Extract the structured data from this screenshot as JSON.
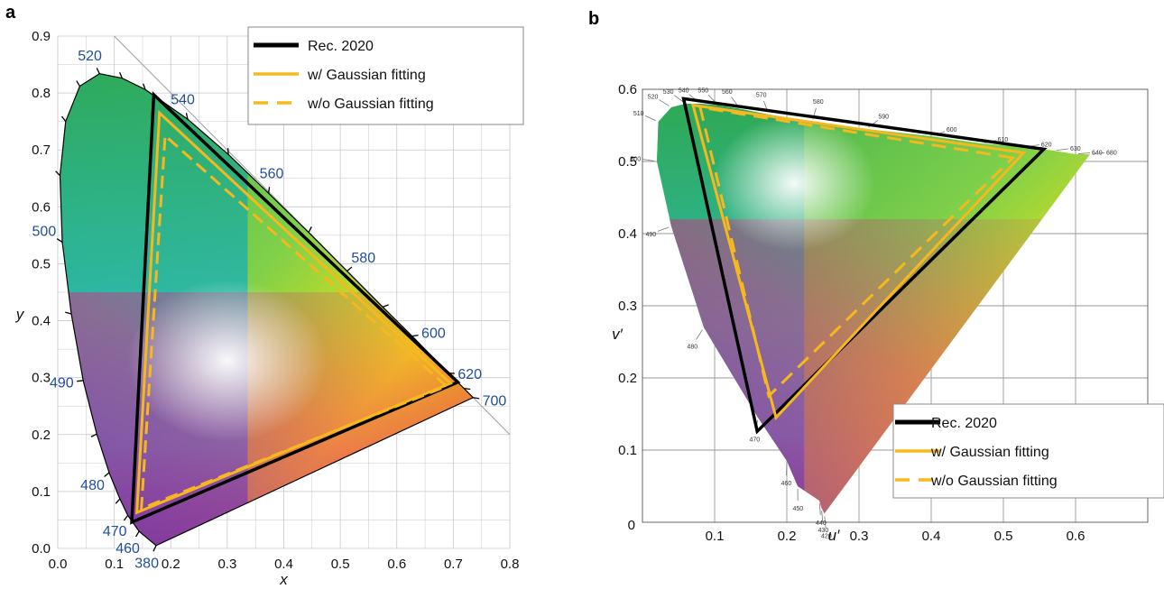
{
  "panel_labels": [
    "a",
    "b"
  ],
  "colors": {
    "rec2020": "#000000",
    "gaussian": "#F6B81E",
    "wavelength_label": "#1F4E9A"
  },
  "chart_data": [
    {
      "type": "scatter",
      "panel": "a",
      "title": "",
      "xlabel": "x",
      "ylabel": "y",
      "xlim": [
        0.0,
        0.8
      ],
      "ylim": [
        0.0,
        0.9
      ],
      "xticks": [
        "0.0",
        "0.1",
        "0.2",
        "0.3",
        "0.4",
        "0.5",
        "0.6",
        "0.7",
        "0.8"
      ],
      "yticks": [
        "0.0",
        "0.1",
        "0.2",
        "0.3",
        "0.4",
        "0.5",
        "0.6",
        "0.7",
        "0.8",
        "0.9"
      ],
      "grid": true,
      "legend": "top-right",
      "spectral_locus": [
        {
          "nm": 380,
          "x": 0.174,
          "y": 0.005
        },
        {
          "nm": 460,
          "x": 0.144,
          "y": 0.03
        },
        {
          "nm": 470,
          "x": 0.124,
          "y": 0.058
        },
        {
          "nm": 475,
          "x": 0.11,
          "y": 0.087
        },
        {
          "nm": 480,
          "x": 0.091,
          "y": 0.133
        },
        {
          "nm": 485,
          "x": 0.069,
          "y": 0.201
        },
        {
          "nm": 490,
          "x": 0.045,
          "y": 0.295
        },
        {
          "nm": 495,
          "x": 0.024,
          "y": 0.412
        },
        {
          "nm": 500,
          "x": 0.008,
          "y": 0.538
        },
        {
          "nm": 505,
          "x": 0.004,
          "y": 0.655
        },
        {
          "nm": 510,
          "x": 0.014,
          "y": 0.75
        },
        {
          "nm": 515,
          "x": 0.039,
          "y": 0.812
        },
        {
          "nm": 520,
          "x": 0.074,
          "y": 0.834
        },
        {
          "nm": 525,
          "x": 0.114,
          "y": 0.826
        },
        {
          "nm": 530,
          "x": 0.155,
          "y": 0.806
        },
        {
          "nm": 540,
          "x": 0.23,
          "y": 0.754
        },
        {
          "nm": 550,
          "x": 0.302,
          "y": 0.692
        },
        {
          "nm": 560,
          "x": 0.373,
          "y": 0.624
        },
        {
          "nm": 570,
          "x": 0.444,
          "y": 0.555
        },
        {
          "nm": 580,
          "x": 0.512,
          "y": 0.487
        },
        {
          "nm": 590,
          "x": 0.575,
          "y": 0.424
        },
        {
          "nm": 600,
          "x": 0.627,
          "y": 0.373
        },
        {
          "nm": 620,
          "x": 0.691,
          "y": 0.308
        },
        {
          "nm": 640,
          "x": 0.719,
          "y": 0.281
        },
        {
          "nm": 700,
          "x": 0.735,
          "y": 0.265
        }
      ],
      "wavelength_labels": [
        {
          "text": "380",
          "x": 0.174,
          "y": 0.005
        },
        {
          "text": "460",
          "x": 0.144,
          "y": 0.03
        },
        {
          "text": "470",
          "x": 0.124,
          "y": 0.058
        },
        {
          "text": "480",
          "x": 0.091,
          "y": 0.133
        },
        {
          "text": "490",
          "x": 0.045,
          "y": 0.295
        },
        {
          "text": "500",
          "x": 0.008,
          "y": 0.538
        },
        {
          "text": "520",
          "x": 0.074,
          "y": 0.834
        },
        {
          "text": "540",
          "x": 0.23,
          "y": 0.754
        },
        {
          "text": "560",
          "x": 0.373,
          "y": 0.624
        },
        {
          "text": "580",
          "x": 0.512,
          "y": 0.487
        },
        {
          "text": "600",
          "x": 0.627,
          "y": 0.373
        },
        {
          "text": "620",
          "x": 0.691,
          "y": 0.308
        },
        {
          "text": "700",
          "x": 0.735,
          "y": 0.265
        }
      ],
      "series": [
        {
          "name": "Rec. 2020",
          "style": "solid",
          "color": "#000000",
          "points": [
            [
              0.708,
              0.292
            ],
            [
              0.17,
              0.797
            ],
            [
              0.131,
              0.046
            ]
          ]
        },
        {
          "name": "w/ Gaussian fitting",
          "style": "solid",
          "color": "#F6B81E",
          "points": [
            [
              0.695,
              0.29
            ],
            [
              0.18,
              0.765
            ],
            [
              0.14,
              0.063
            ]
          ]
        },
        {
          "name": "w/o Gaussian fitting",
          "style": "dashed",
          "color": "#F6B81E",
          "points": [
            [
              0.688,
              0.285
            ],
            [
              0.19,
              0.725
            ],
            [
              0.148,
              0.07
            ]
          ]
        }
      ]
    },
    {
      "type": "scatter",
      "panel": "b",
      "title": "",
      "xlabel": "u′",
      "ylabel": "v′",
      "xlim": [
        0.0,
        0.7
      ],
      "ylim": [
        0.0,
        0.6
      ],
      "xticks": [
        "0",
        "0.1",
        "0.2",
        "0.3",
        "0.4",
        "0.5",
        "0.6"
      ],
      "yticks": [
        "0",
        "0.1",
        "0.2",
        "0.3",
        "0.4",
        "0.5",
        "0.6"
      ],
      "grid": true,
      "legend": "bottom-right",
      "spectral_locus": [
        {
          "nm": 420,
          "u": 0.252,
          "v": 0.012
        },
        {
          "nm": 430,
          "u": 0.248,
          "v": 0.02
        },
        {
          "nm": 440,
          "u": 0.245,
          "v": 0.03
        },
        {
          "nm": 450,
          "u": 0.215,
          "v": 0.05
        },
        {
          "nm": 460,
          "u": 0.2,
          "v": 0.085
        },
        {
          "nm": 470,
          "u": 0.16,
          "v": 0.145
        },
        {
          "nm": 480,
          "u": 0.085,
          "v": 0.27
        },
        {
          "nm": 490,
          "u": 0.04,
          "v": 0.41
        },
        {
          "nm": 500,
          "u": 0.02,
          "v": 0.5
        },
        {
          "nm": 510,
          "u": 0.022,
          "v": 0.555
        },
        {
          "nm": 520,
          "u": 0.04,
          "v": 0.575
        },
        {
          "nm": 530,
          "u": 0.06,
          "v": 0.58
        },
        {
          "nm": 540,
          "u": 0.08,
          "v": 0.58
        },
        {
          "nm": 550,
          "u": 0.105,
          "v": 0.578
        },
        {
          "nm": 560,
          "u": 0.135,
          "v": 0.573
        },
        {
          "nm": 570,
          "u": 0.175,
          "v": 0.565
        },
        {
          "nm": 580,
          "u": 0.235,
          "v": 0.555
        },
        {
          "nm": 590,
          "u": 0.31,
          "v": 0.545
        },
        {
          "nm": 600,
          "u": 0.4,
          "v": 0.535
        },
        {
          "nm": 610,
          "u": 0.47,
          "v": 0.525
        },
        {
          "nm": 620,
          "u": 0.53,
          "v": 0.52
        },
        {
          "nm": 630,
          "u": 0.57,
          "v": 0.515
        },
        {
          "nm": 640,
          "u": 0.6,
          "v": 0.51
        },
        {
          "nm": 680,
          "u": 0.62,
          "v": 0.51
        }
      ],
      "wavelength_labels": [
        {
          "text": "420",
          "u": 0.252,
          "v": 0.012
        },
        {
          "text": "430",
          "u": 0.248,
          "v": 0.02
        },
        {
          "text": "440",
          "u": 0.245,
          "v": 0.03
        },
        {
          "text": "450",
          "u": 0.215,
          "v": 0.05
        },
        {
          "text": "460",
          "u": 0.2,
          "v": 0.085
        },
        {
          "text": "470",
          "u": 0.16,
          "v": 0.145
        },
        {
          "text": "480",
          "u": 0.085,
          "v": 0.27
        },
        {
          "text": "490",
          "u": 0.04,
          "v": 0.41
        },
        {
          "text": "500",
          "u": 0.02,
          "v": 0.5
        },
        {
          "text": "510",
          "u": 0.022,
          "v": 0.555
        },
        {
          "text": "520",
          "u": 0.04,
          "v": 0.575
        },
        {
          "text": "530",
          "u": 0.06,
          "v": 0.58
        },
        {
          "text": "540",
          "u": 0.08,
          "v": 0.58
        },
        {
          "text": "550",
          "u": 0.105,
          "v": 0.578
        },
        {
          "text": "560",
          "u": 0.135,
          "v": 0.573
        },
        {
          "text": "570",
          "u": 0.175,
          "v": 0.565
        },
        {
          "text": "580",
          "u": 0.235,
          "v": 0.555
        },
        {
          "text": "590",
          "u": 0.31,
          "v": 0.545
        },
        {
          "text": "600",
          "u": 0.4,
          "v": 0.535
        },
        {
          "text": "610",
          "u": 0.47,
          "v": 0.525
        },
        {
          "text": "620",
          "u": 0.53,
          "v": 0.52
        },
        {
          "text": "630",
          "u": 0.57,
          "v": 0.515
        },
        {
          "text": "640",
          "u": 0.6,
          "v": 0.51
        },
        {
          "text": "680",
          "u": 0.62,
          "v": 0.51
        }
      ],
      "series": [
        {
          "name": "Rec. 2020",
          "style": "solid",
          "color": "#000000",
          "points": [
            [
              0.556,
              0.517
            ],
            [
              0.057,
              0.587
            ],
            [
              0.159,
              0.126
            ]
          ]
        },
        {
          "name": "w/ Gaussian fitting",
          "style": "solid",
          "color": "#F6B81E",
          "points": [
            [
              0.528,
              0.512
            ],
            [
              0.07,
              0.578
            ],
            [
              0.185,
              0.145
            ]
          ]
        },
        {
          "name": "w/o Gaussian fitting",
          "style": "dashed",
          "color": "#F6B81E",
          "points": [
            [
              0.513,
              0.505
            ],
            [
              0.08,
              0.575
            ],
            [
              0.175,
              0.175
            ]
          ]
        }
      ]
    }
  ]
}
